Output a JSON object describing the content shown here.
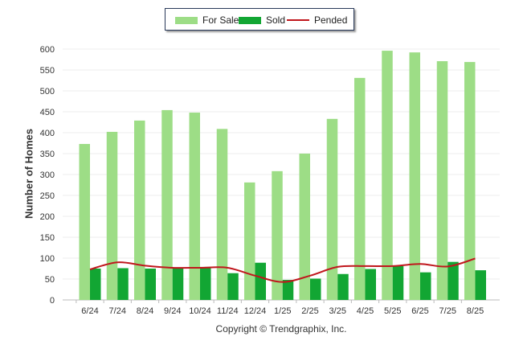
{
  "chart_data": {
    "type": "bar",
    "categories": [
      "6/24",
      "7/24",
      "8/24",
      "9/24",
      "10/24",
      "11/24",
      "12/24",
      "1/25",
      "2/25",
      "3/25",
      "4/25",
      "5/25",
      "6/25",
      "7/25",
      "8/25"
    ],
    "series": [
      {
        "name": "For Sale",
        "kind": "bar",
        "color": "#9ddd86",
        "values": [
          373,
          402,
          429,
          454,
          448,
          409,
          281,
          308,
          350,
          433,
          531,
          596,
          592,
          571,
          569
        ]
      },
      {
        "name": "Sold",
        "kind": "bar",
        "color": "#12a633",
        "values": [
          75,
          76,
          75,
          76,
          79,
          64,
          89,
          48,
          51,
          62,
          74,
          81,
          66,
          91,
          71
        ]
      },
      {
        "name": "Pended",
        "kind": "line",
        "color": "#c0161c",
        "values": [
          73,
          90,
          82,
          77,
          77,
          77,
          58,
          43,
          58,
          79,
          81,
          81,
          86,
          80,
          99
        ]
      }
    ],
    "ylabel": "Number of Homes",
    "xlabel": "",
    "ylim": [
      0,
      600
    ],
    "yticks": [
      0,
      50,
      100,
      150,
      200,
      250,
      300,
      350,
      400,
      450,
      500,
      550,
      600
    ],
    "grid": true,
    "legend_position": "top-center"
  },
  "legend": {
    "for_sale": "For Sale",
    "sold": "Sold",
    "pended": "Pended"
  },
  "footer": {
    "copyright": "Copyright © Trendgraphix, Inc."
  }
}
